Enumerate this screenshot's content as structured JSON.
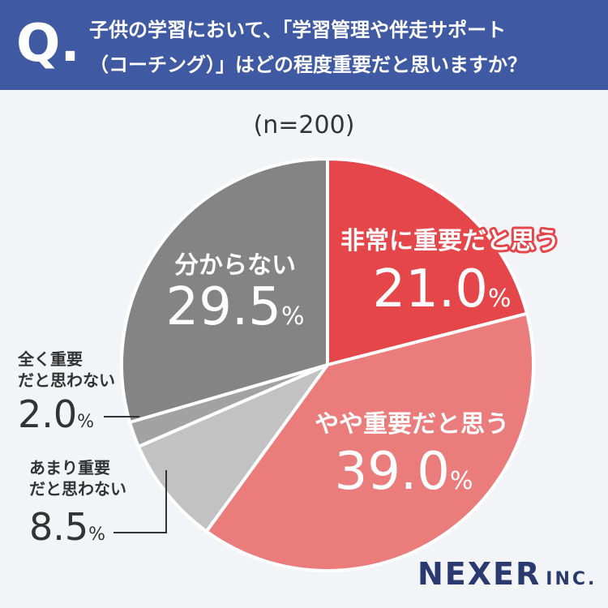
{
  "question": {
    "mark": "Q.",
    "line1": "子供の学習において、「学習管理や伴走サポート",
    "line2": "（コーチング）」はどの程度重要だと思いますか？"
  },
  "sample_size": "(n=200)",
  "brand": {
    "name": "NEXER",
    "suffix": "INC."
  },
  "chart_data": {
    "type": "pie",
    "start_angle_deg": 0,
    "direction": "clockwise",
    "slices": [
      {
        "label_lines": [
          "非常に重要だと思う"
        ],
        "value": 21.0,
        "value_text": "21.0",
        "unit": "%",
        "color": "#e5464a",
        "label_style": "inside"
      },
      {
        "label_lines": [
          "やや重要だと思う"
        ],
        "value": 39.0,
        "value_text": "39.0",
        "unit": "%",
        "color": "#eb7c7c",
        "label_style": "inside"
      },
      {
        "label_lines": [
          "あまり重要",
          "だと思わない"
        ],
        "value": 8.5,
        "value_text": "8.5",
        "unit": "%",
        "color": "#c2c2c2",
        "label_style": "outside"
      },
      {
        "label_lines": [
          "全く重要",
          "だと思わない"
        ],
        "value": 2.0,
        "value_text": "2.0",
        "unit": "%",
        "color": "#a2a2a2",
        "label_style": "outside"
      },
      {
        "label_lines": [
          "分からない"
        ],
        "value": 29.5,
        "value_text": "29.5",
        "unit": "%",
        "color": "#848484",
        "label_style": "inside"
      }
    ]
  }
}
